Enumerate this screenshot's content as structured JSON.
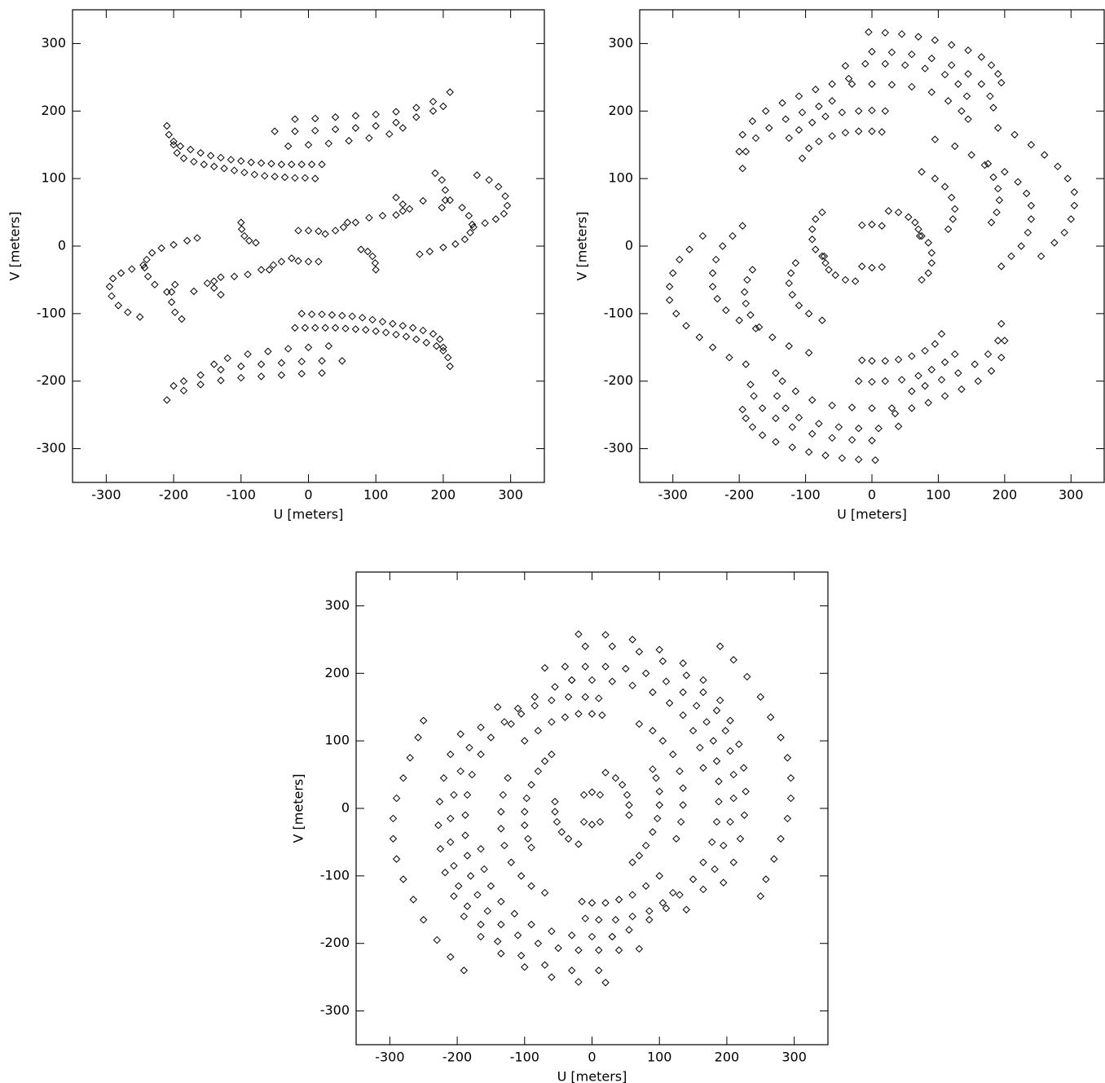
{
  "chart_data": [
    {
      "type": "scatter",
      "marker": "diamond",
      "color": "#000000",
      "xlabel": "U [meters]",
      "ylabel": "V [meters]",
      "xlim": [
        -350,
        350
      ],
      "ylim": [
        -350,
        350
      ],
      "xticks": [
        -300,
        -200,
        -100,
        0,
        100,
        200,
        300
      ],
      "yticks": [
        -300,
        -200,
        -100,
        0,
        100,
        200,
        300
      ],
      "x": [
        -210,
        -207,
        -200,
        -190,
        -175,
        -160,
        -145,
        -130,
        -115,
        -100,
        -85,
        -70,
        -55,
        -40,
        -25,
        -10,
        5,
        20,
        -200,
        -195,
        -185,
        -170,
        -155,
        -140,
        -125,
        -110,
        -95,
        -80,
        -65,
        -50,
        -35,
        -20,
        -5,
        10,
        -20,
        10,
        40,
        70,
        100,
        130,
        160,
        185,
        210,
        -50,
        -20,
        10,
        40,
        70,
        100,
        130,
        160,
        185,
        200,
        -30,
        0,
        30,
        60,
        90,
        120,
        140,
        -100,
        -99,
        -95,
        -88,
        -78,
        -15,
        0,
        15,
        25,
        40,
        52,
        58,
        70,
        90,
        110,
        130,
        140,
        140,
        130,
        150,
        170,
        188,
        198,
        203,
        203,
        198,
        250,
        268,
        282,
        292,
        295,
        290,
        278,
        262,
        245,
        210,
        228,
        238,
        243,
        240,
        232,
        218,
        200,
        180,
        165,
        210,
        207,
        200,
        190,
        175,
        160,
        145,
        130,
        115,
        100,
        85,
        70,
        55,
        40,
        25,
        10,
        -5,
        -20,
        200,
        195,
        185,
        170,
        155,
        140,
        125,
        110,
        95,
        80,
        65,
        50,
        35,
        20,
        5,
        -10,
        20,
        -10,
        -40,
        -70,
        -100,
        -130,
        -160,
        -185,
        -210,
        50,
        20,
        -10,
        -40,
        -70,
        -100,
        -130,
        -160,
        -185,
        -200,
        30,
        0,
        -30,
        -60,
        -90,
        -120,
        -140,
        100,
        99,
        95,
        88,
        78,
        15,
        0,
        -15,
        -25,
        -40,
        -52,
        -58,
        -70,
        -90,
        -110,
        -130,
        -140,
        -140,
        -130,
        -150,
        -170,
        -188,
        -198,
        -203,
        -203,
        -198,
        -250,
        -268,
        -282,
        -292,
        -295,
        -290,
        -278,
        -262,
        -245,
        -210,
        -228,
        -238,
        -243,
        -240,
        -232,
        -218,
        -200,
        -180,
        -165
      ],
      "values": [
        178,
        165,
        155,
        148,
        143,
        138,
        134,
        131,
        128,
        126,
        124,
        123,
        122,
        121,
        121,
        121,
        121,
        121,
        150,
        138,
        130,
        125,
        121,
        118,
        115,
        112,
        109,
        106,
        104,
        103,
        102,
        101,
        101,
        100,
        188,
        189,
        191,
        193,
        195,
        199,
        205,
        214,
        228,
        170,
        170,
        171,
        173,
        175,
        178,
        183,
        191,
        200,
        207,
        148,
        150,
        152,
        156,
        160,
        166,
        175,
        35,
        25,
        15,
        8,
        5,
        23,
        23,
        22,
        18,
        23,
        28,
        35,
        35,
        42,
        45,
        72,
        62,
        52,
        46,
        55,
        67,
        108,
        98,
        83,
        68,
        57,
        105,
        98,
        88,
        74,
        60,
        48,
        40,
        34,
        28,
        68,
        57,
        45,
        32,
        20,
        10,
        3,
        -2,
        -8,
        -12,
        -178,
        -165,
        -155,
        -148,
        -143,
        -138,
        -134,
        -131,
        -128,
        -126,
        -124,
        -123,
        -122,
        -121,
        -121,
        -121,
        -121,
        -121,
        -150,
        -138,
        -130,
        -125,
        -121,
        -118,
        -115,
        -112,
        -109,
        -106,
        -104,
        -103,
        -102,
        -101,
        -101,
        -100,
        -188,
        -189,
        -191,
        -193,
        -195,
        -199,
        -205,
        -214,
        -228,
        -170,
        -170,
        -171,
        -173,
        -175,
        -178,
        -183,
        -191,
        -200,
        -207,
        -148,
        -150,
        -152,
        -156,
        -160,
        -166,
        -175,
        -35,
        -25,
        -15,
        -8,
        -5,
        -23,
        -23,
        -22,
        -18,
        -23,
        -28,
        -35,
        -35,
        -42,
        -45,
        -72,
        -62,
        -52,
        -46,
        -55,
        -67,
        -108,
        -98,
        -83,
        -68,
        -57,
        -105,
        -98,
        -88,
        -74,
        -60,
        -48,
        -40,
        -34,
        -28,
        -68,
        -57,
        -45,
        -32,
        -20,
        -10,
        -3,
        2,
        8,
        12
      ]
    },
    {
      "type": "scatter",
      "marker": "diamond",
      "color": "#000000",
      "xlabel": "U [meters]",
      "ylabel": "V [meters]",
      "xlim": [
        -350,
        350
      ],
      "ylim": [
        -350,
        350
      ],
      "xticks": [
        -300,
        -200,
        -100,
        0,
        100,
        200,
        300
      ],
      "yticks": [
        -300,
        -200,
        -100,
        0,
        100,
        200,
        300
      ],
      "x": [
        -5,
        20,
        45,
        70,
        95,
        120,
        145,
        165,
        180,
        190,
        195,
        0,
        30,
        60,
        90,
        120,
        145,
        165,
        178,
        183,
        -40,
        -10,
        20,
        50,
        80,
        110,
        130,
        143,
        -30,
        0,
        30,
        60,
        90,
        115,
        135,
        145,
        -200,
        -195,
        -180,
        -160,
        -135,
        -110,
        -85,
        -60,
        -35,
        -195,
        -190,
        -175,
        -155,
        -130,
        -105,
        -80,
        -60,
        -125,
        -110,
        -90,
        -70,
        -45,
        -20,
        0,
        20,
        -105,
        -95,
        -80,
        -60,
        -40,
        -20,
        0,
        15,
        190,
        215,
        240,
        260,
        280,
        295,
        305,
        305,
        300,
        290,
        275,
        255,
        95,
        125,
        150,
        170,
        183,
        190,
        192,
        188,
        180,
        175,
        200,
        220,
        233,
        240,
        240,
        235,
        225,
        210,
        195,
        75,
        95,
        110,
        120,
        125,
        122,
        115,
        -75,
        -85,
        -90,
        -90,
        -85,
        -75,
        -15,
        0,
        15,
        25,
        40,
        55,
        65,
        70,
        72,
        5,
        -20,
        -45,
        -70,
        -95,
        -120,
        -145,
        -165,
        -180,
        -190,
        -195,
        0,
        -30,
        -60,
        -90,
        -120,
        -145,
        -165,
        -178,
        -183,
        40,
        10,
        -20,
        -50,
        -80,
        -110,
        -130,
        -143,
        30,
        0,
        -30,
        -60,
        -90,
        -115,
        -135,
        -145,
        200,
        195,
        180,
        160,
        135,
        110,
        85,
        60,
        35,
        195,
        190,
        175,
        155,
        130,
        105,
        80,
        60,
        125,
        110,
        90,
        70,
        45,
        20,
        0,
        -20,
        105,
        95,
        80,
        60,
        40,
        20,
        0,
        -15,
        -190,
        -215,
        -240,
        -260,
        -280,
        -295,
        -305,
        -305,
        -300,
        -290,
        -275,
        -255,
        -95,
        -125,
        -150,
        -170,
        -183,
        -190,
        -192,
        -188,
        -180,
        -175,
        -200,
        -220,
        -233,
        -240,
        -240,
        -235,
        -225,
        -210,
        -195,
        -75,
        -95,
        -110,
        -120,
        -125,
        -122,
        -115,
        75,
        85,
        90,
        90,
        85,
        75,
        15,
        0,
        -15,
        -25,
        -40,
        -55,
        -65,
        -70,
        -72
      ],
      "values": [
        317,
        316,
        314,
        310,
        305,
        298,
        290,
        280,
        268,
        255,
        242,
        288,
        287,
        284,
        278,
        268,
        255,
        240,
        222,
        205,
        267,
        270,
        270,
        268,
        263,
        254,
        240,
        222,
        240,
        240,
        239,
        236,
        228,
        215,
        200,
        188,
        140,
        165,
        185,
        200,
        212,
        222,
        232,
        240,
        248,
        115,
        140,
        160,
        175,
        188,
        198,
        207,
        215,
        160,
        172,
        183,
        192,
        198,
        200,
        201,
        200,
        130,
        145,
        155,
        163,
        168,
        170,
        170,
        169,
        175,
        165,
        150,
        135,
        118,
        100,
        80,
        60,
        40,
        20,
        5,
        -15,
        158,
        148,
        135,
        120,
        102,
        85,
        68,
        50,
        35,
        122,
        110,
        95,
        78,
        60,
        40,
        20,
        0,
        -15,
        -30,
        110,
        100,
        88,
        72,
        55,
        40,
        25,
        50,
        40,
        25,
        10,
        -5,
        -15,
        31,
        32,
        30,
        52,
        50,
        43,
        35,
        25,
        15,
        -317,
        -316,
        -314,
        -310,
        -305,
        -298,
        -290,
        -280,
        -268,
        -255,
        -242,
        -288,
        -287,
        -284,
        -278,
        -268,
        -255,
        -240,
        -222,
        -205,
        -267,
        -270,
        -270,
        -268,
        -263,
        -254,
        -240,
        -222,
        -240,
        -240,
        -239,
        -236,
        -228,
        -215,
        -200,
        -188,
        -140,
        -165,
        -185,
        -200,
        -212,
        -222,
        -232,
        -240,
        -248,
        -115,
        -140,
        -160,
        -175,
        -188,
        -198,
        -207,
        -215,
        -160,
        -172,
        -183,
        -192,
        -198,
        -200,
        -201,
        -200,
        -130,
        -145,
        -155,
        -163,
        -168,
        -170,
        -170,
        -169,
        -175,
        -165,
        -150,
        -135,
        -118,
        -100,
        -80,
        -60,
        -40,
        -20,
        -5,
        15,
        -158,
        -148,
        -135,
        -120,
        -102,
        -85,
        -68,
        -50,
        -35,
        -122,
        -110,
        -95,
        -78,
        -60,
        -40,
        -20,
        0,
        15,
        30,
        -110,
        -100,
        -88,
        -72,
        -55,
        -40,
        -25,
        -50,
        -40,
        -25,
        -10,
        5,
        15,
        -31,
        -32,
        -30,
        -52,
        -50,
        -43,
        -35,
        -25,
        -15
      ]
    },
    {
      "type": "scatter",
      "marker": "diamond",
      "color": "#000000",
      "xlabel": "U [meters]",
      "ylabel": "V [meters]",
      "xlim": [
        -350,
        350
      ],
      "ylim": [
        -350,
        350
      ],
      "xticks": [
        -300,
        -200,
        -100,
        0,
        100,
        200,
        300
      ],
      "yticks": [
        -300,
        -200,
        -100,
        0,
        100,
        200,
        300
      ],
      "x": [
        190,
        210,
        230,
        250,
        265,
        280,
        290,
        295,
        295,
        290,
        280,
        270,
        258,
        250,
        -20,
        20,
        60,
        100,
        135,
        165,
        190,
        205,
        218,
        225,
        228,
        226,
        220,
        210,
        195,
        -10,
        30,
        70,
        105,
        140,
        165,
        185,
        198,
        205,
        210,
        210,
        205,
        195,
        182,
        165,
        140,
        -70,
        -40,
        -10,
        20,
        50,
        80,
        110,
        135,
        155,
        170,
        180,
        185,
        188,
        188,
        185,
        178,
        165,
        150,
        130,
        110,
        85,
        55,
        30,
        -30,
        0,
        30,
        60,
        90,
        115,
        135,
        150,
        160,
        165,
        -120,
        -105,
        -85,
        -60,
        -35,
        -10,
        10,
        -100,
        -80,
        -60,
        -40,
        -20,
        0,
        15,
        70,
        90,
        105,
        120,
        130,
        135,
        135,
        132,
        125,
        90,
        95,
        100,
        100,
        97,
        90,
        80,
        70,
        60,
        20,
        35,
        45,
        52,
        55,
        55,
        -12,
        0,
        12,
        -190,
        -210,
        -230,
        -250,
        -265,
        -280,
        -290,
        -295,
        -295,
        -290,
        -280,
        -270,
        -258,
        -250,
        20,
        -20,
        -60,
        -100,
        -135,
        -165,
        -190,
        -205,
        -218,
        -225,
        -228,
        -226,
        -220,
        -210,
        -195,
        10,
        -30,
        -70,
        -105,
        -140,
        -165,
        -185,
        -198,
        -205,
        -210,
        -210,
        -205,
        -195,
        -182,
        -165,
        -140,
        70,
        40,
        10,
        -20,
        -50,
        -80,
        -110,
        -135,
        -155,
        -170,
        -180,
        -185,
        -188,
        -188,
        -185,
        -178,
        -165,
        -150,
        -130,
        -110,
        -85,
        -55,
        -30,
        30,
        0,
        -30,
        -60,
        -90,
        -115,
        -135,
        -150,
        -160,
        -165,
        120,
        105,
        85,
        60,
        35,
        10,
        -10,
        100,
        80,
        60,
        40,
        20,
        0,
        -15,
        -70,
        -90,
        -105,
        -120,
        -130,
        -135,
        -135,
        -132,
        -125,
        -90,
        -95,
        -100,
        -100,
        -97,
        -90,
        -80,
        -70,
        -60,
        -20,
        -35,
        -45,
        -52,
        -55,
        -55,
        12,
        0,
        -12
      ],
      "values": [
        240,
        220,
        195,
        165,
        135,
        105,
        75,
        45,
        15,
        -15,
        -45,
        -75,
        -105,
        -130,
        258,
        257,
        250,
        235,
        215,
        190,
        160,
        130,
        95,
        60,
        25,
        -10,
        -45,
        -80,
        -110,
        240,
        240,
        232,
        218,
        197,
        172,
        145,
        115,
        85,
        50,
        15,
        -20,
        -55,
        -90,
        -120,
        -150,
        208,
        210,
        210,
        210,
        207,
        200,
        188,
        172,
        152,
        128,
        100,
        70,
        40,
        10,
        -20,
        -50,
        -80,
        -105,
        -128,
        -148,
        -165,
        -180,
        -190,
        190,
        190,
        188,
        182,
        172,
        156,
        138,
        115,
        90,
        60,
        125,
        140,
        152,
        160,
        165,
        165,
        163,
        100,
        115,
        128,
        135,
        140,
        140,
        138,
        125,
        115,
        100,
        80,
        55,
        30,
        5,
        -20,
        -45,
        58,
        45,
        25,
        5,
        -15,
        -35,
        -55,
        -70,
        -80,
        53,
        45,
        35,
        20,
        5,
        -10,
        20,
        24,
        20,
        -240,
        -220,
        -195,
        -165,
        -135,
        -105,
        -75,
        -45,
        -15,
        15,
        45,
        75,
        105,
        130,
        -258,
        -257,
        -250,
        -235,
        -215,
        -190,
        -160,
        -130,
        -95,
        -60,
        -25,
        10,
        45,
        80,
        110,
        -240,
        -240,
        -232,
        -218,
        -197,
        -172,
        -145,
        -115,
        -85,
        -50,
        -15,
        20,
        55,
        90,
        120,
        150,
        -208,
        -210,
        -210,
        -210,
        -207,
        -200,
        -188,
        -172,
        -152,
        -128,
        -100,
        -70,
        -40,
        -10,
        20,
        50,
        80,
        105,
        128,
        148,
        165,
        180,
        190,
        -190,
        -190,
        -188,
        -182,
        -172,
        -156,
        -138,
        -115,
        -90,
        -60,
        -125,
        -140,
        -152,
        -160,
        -165,
        -165,
        -163,
        -100,
        -115,
        -128,
        -135,
        -140,
        -140,
        -138,
        -125,
        -115,
        -100,
        -80,
        -55,
        -30,
        -5,
        20,
        45,
        -58,
        -45,
        -25,
        -5,
        15,
        35,
        55,
        70,
        80,
        -53,
        -45,
        -35,
        -20,
        -5,
        10,
        -20,
        -24,
        -20
      ]
    }
  ]
}
